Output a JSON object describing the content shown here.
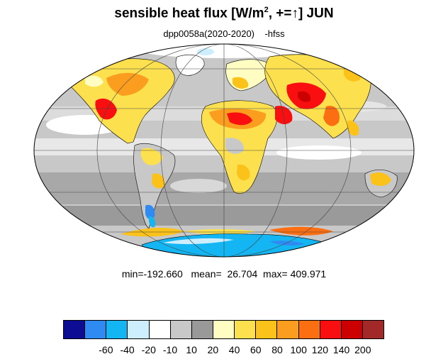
{
  "title": {
    "pre": "sensible heat flux [W/m",
    "sup": "2",
    "mid": ", +=",
    "arrow": "↑",
    "post": "]  JUN"
  },
  "subtitle": "dpp0058a(2020-2020)    -hfss",
  "stats": {
    "text": "min=-192.660   mean=  26.704  max= 409.971",
    "min": -192.66,
    "mean": 26.704,
    "max": 409.971
  },
  "colorbar": {
    "colors": [
      "#0c0c94",
      "#2f8bf2",
      "#13b6f2",
      "#cdeefc",
      "#ffffff",
      "#c8c8c8",
      "#999999",
      "#fffdc2",
      "#fde04e",
      "#fbc21a",
      "#fb9d1f",
      "#fb6e12",
      "#f90f0f",
      "#cc0000",
      "#a32929"
    ],
    "labels": [
      "-60",
      "-40",
      "-20",
      "-10",
      "10",
      "20",
      "40",
      "60",
      "80",
      "100",
      "120",
      "140",
      "200"
    ]
  },
  "map": {
    "projection": "Mollweide",
    "ocean_color": "#c8c8c8",
    "coastline_color": "#000000"
  }
}
